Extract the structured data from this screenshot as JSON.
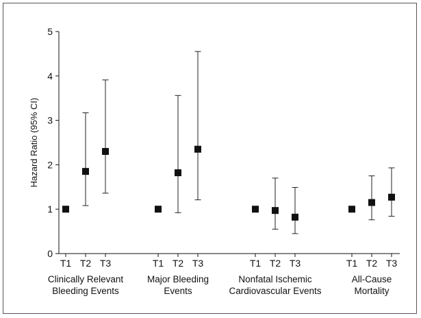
{
  "chart_data": {
    "type": "scatter",
    "title": "",
    "xlabel": "",
    "ylabel": "Hazard Ratio (95% CI)",
    "ylim": [
      0,
      5
    ],
    "yticks": [
      0,
      1,
      2,
      3,
      4,
      5
    ],
    "error_bars": true,
    "groups": [
      {
        "label_lines": [
          "Clinically Relevant",
          "Bleeding Events"
        ],
        "points": [
          {
            "label": "T1",
            "value": 1.0,
            "ci_low": null,
            "ci_high": null
          },
          {
            "label": "T2",
            "value": 1.85,
            "ci_low": 1.08,
            "ci_high": 3.17
          },
          {
            "label": "T3",
            "value": 2.3,
            "ci_low": 1.36,
            "ci_high": 3.91
          }
        ]
      },
      {
        "label_lines": [
          "Major Bleeding",
          "Events"
        ],
        "points": [
          {
            "label": "T1",
            "value": 1.0,
            "ci_low": null,
            "ci_high": null
          },
          {
            "label": "T2",
            "value": 1.82,
            "ci_low": 0.92,
            "ci_high": 3.56
          },
          {
            "label": "T3",
            "value": 2.35,
            "ci_low": 1.21,
            "ci_high": 4.55
          }
        ]
      },
      {
        "label_lines": [
          "Nonfatal Ischemic",
          "Cardiovascular Events"
        ],
        "points": [
          {
            "label": "T1",
            "value": 1.0,
            "ci_low": null,
            "ci_high": null
          },
          {
            "label": "T2",
            "value": 0.97,
            "ci_low": 0.55,
            "ci_high": 1.7
          },
          {
            "label": "T3",
            "value": 0.82,
            "ci_low": 0.45,
            "ci_high": 1.49
          }
        ]
      },
      {
        "label_lines": [
          "All-Cause",
          "Mortality"
        ],
        "points": [
          {
            "label": "T1",
            "value": 1.0,
            "ci_low": null,
            "ci_high": null
          },
          {
            "label": "T2",
            "value": 1.15,
            "ci_low": 0.76,
            "ci_high": 1.75
          },
          {
            "label": "T3",
            "value": 1.27,
            "ci_low": 0.84,
            "ci_high": 1.93
          }
        ]
      }
    ],
    "grid": false,
    "legend": "none"
  }
}
